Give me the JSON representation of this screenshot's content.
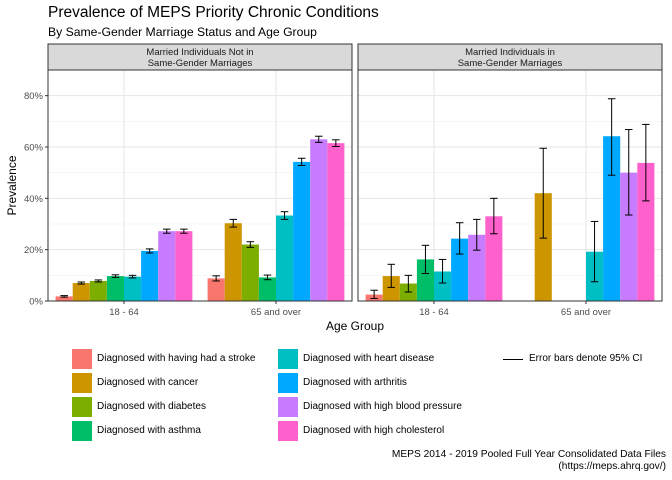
{
  "title": "Prevalence of MEPS Priority Chronic Conditions",
  "subtitle": "By Same-Gender Marriage Status and Age Group",
  "caption": "MEPS 2014 - 2019 Pooled Full Year Consolidated Data Files\n(https://meps.ahrq.gov/)",
  "error_bar_note": "Error bars denote 95% CI",
  "chart_data": {
    "type": "bar",
    "xlabel": "Age Group",
    "ylabel": "Prevalence",
    "ylim": [
      0,
      0.9
    ],
    "yticks": [
      0,
      0.2,
      0.4,
      0.6,
      0.8
    ],
    "ytick_labels": [
      "0%",
      "20%",
      "40%",
      "60%",
      "80%"
    ],
    "grid": true,
    "legend_position": "bottom",
    "categories": [
      "18 - 64",
      "65 and over"
    ],
    "series": [
      {
        "name": "Diagnosed with having had a stroke",
        "color": "#F8766D"
      },
      {
        "name": "Diagnosed with cancer",
        "color": "#CD9600"
      },
      {
        "name": "Diagnosed with diabetes",
        "color": "#7CAE00"
      },
      {
        "name": "Diagnosed with asthma",
        "color": "#00BE67"
      },
      {
        "name": "Diagnosed with heart disease",
        "color": "#00BFC4"
      },
      {
        "name": "Diagnosed with arthritis",
        "color": "#00A9FF"
      },
      {
        "name": "Diagnosed with high blood pressure",
        "color": "#C77CFF"
      },
      {
        "name": "Diagnosed with high cholesterol",
        "color": "#FF61CC"
      }
    ],
    "panels": [
      {
        "label_line1": "Married Individuals Not in",
        "label_line2": "Same-Gender Marriages",
        "groups": [
          {
            "values": [
              0.018,
              0.07,
              0.078,
              0.097,
              0.095,
              0.195,
              0.272,
              0.272
            ],
            "lower": [
              0.015,
              0.066,
              0.074,
              0.092,
              0.09,
              0.187,
              0.264,
              0.264
            ],
            "upper": [
              0.021,
              0.074,
              0.082,
              0.102,
              0.1,
              0.203,
              0.28,
              0.28
            ]
          },
          {
            "values": [
              0.088,
              0.303,
              0.22,
              0.092,
              0.333,
              0.542,
              0.63,
              0.615
            ],
            "lower": [
              0.078,
              0.288,
              0.209,
              0.083,
              0.318,
              0.528,
              0.618,
              0.602
            ],
            "upper": [
              0.098,
              0.318,
              0.231,
              0.101,
              0.348,
              0.556,
              0.642,
              0.628
            ]
          }
        ]
      },
      {
        "label_line1": "Married Individuals in",
        "label_line2": "Same-Gender Marriages",
        "groups": [
          {
            "values": [
              0.025,
              0.097,
              0.068,
              0.162,
              0.115,
              0.243,
              0.258,
              0.33
            ],
            "lower": [
              0.01,
              0.053,
              0.035,
              0.107,
              0.07,
              0.183,
              0.198,
              0.262
            ],
            "upper": [
              0.042,
              0.143,
              0.1,
              0.217,
              0.162,
              0.305,
              0.318,
              0.4
            ]
          },
          {
            "values": [
              null,
              0.42,
              null,
              null,
              0.192,
              0.642,
              0.5,
              0.538
            ],
            "lower": [
              null,
              0.245,
              null,
              null,
              0.075,
              0.49,
              0.335,
              0.39
            ],
            "upper": [
              null,
              0.595,
              null,
              null,
              0.31,
              0.788,
              0.668,
              0.688
            ]
          }
        ]
      }
    ]
  }
}
